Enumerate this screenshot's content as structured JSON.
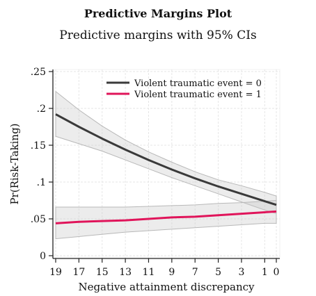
{
  "header": {
    "title": "Predictive Margins Plot",
    "subtitle": "Predictive margins with 95% CIs"
  },
  "chart_data": {
    "type": "line",
    "title": "Predictive Margins Plot",
    "subtitle": "Predictive margins with 95% CIs",
    "xlabel": "Negative attainment discrepancy",
    "ylabel": "Pr(Risk-Taking)",
    "xlim": [
      19,
      0
    ],
    "ylim": [
      0,
      0.25
    ],
    "x_reversed": true,
    "x_ticks": [
      19,
      17,
      15,
      13,
      11,
      9,
      7,
      5,
      3,
      1,
      0
    ],
    "x_tick_labels": [
      "19",
      "17",
      "15",
      "13",
      "11",
      "9",
      "7",
      "5",
      "3",
      "1",
      "0"
    ],
    "y_ticks": [
      0,
      0.05,
      0.1,
      0.15,
      0.2,
      0.25
    ],
    "y_tick_labels": [
      "0",
      ".05",
      ".1",
      ".15",
      ".2",
      ".25"
    ],
    "grid": true,
    "legend_position": "top-right",
    "x": [
      19,
      17,
      15,
      13,
      11,
      9,
      7,
      5,
      3,
      1,
      0
    ],
    "series": [
      {
        "name": "Violent traumatic event = 0",
        "color": "#3a3a3a",
        "values": [
          0.192,
          0.175,
          0.159,
          0.144,
          0.13,
          0.117,
          0.105,
          0.094,
          0.084,
          0.074,
          0.069
        ],
        "ci_lower": [
          0.162,
          0.152,
          0.142,
          0.13,
          0.118,
          0.106,
          0.095,
          0.084,
          0.073,
          0.062,
          0.057
        ],
        "ci_upper": [
          0.223,
          0.198,
          0.176,
          0.157,
          0.141,
          0.127,
          0.114,
          0.103,
          0.095,
          0.086,
          0.081
        ]
      },
      {
        "name": "Violent traumatic event = 1",
        "color": "#e0145a",
        "values": [
          0.044,
          0.046,
          0.047,
          0.048,
          0.05,
          0.052,
          0.053,
          0.055,
          0.057,
          0.059,
          0.06
        ],
        "ci_lower": [
          0.023,
          0.026,
          0.029,
          0.032,
          0.034,
          0.036,
          0.038,
          0.04,
          0.042,
          0.044,
          0.044
        ],
        "ci_upper": [
          0.066,
          0.066,
          0.066,
          0.066,
          0.067,
          0.068,
          0.069,
          0.071,
          0.072,
          0.074,
          0.075
        ]
      }
    ]
  }
}
